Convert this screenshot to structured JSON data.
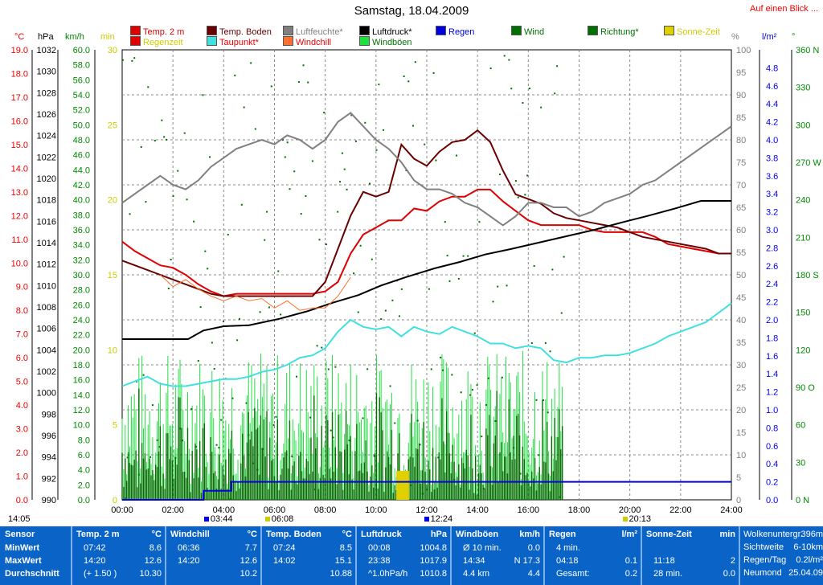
{
  "title": "Samstag, 18.04.2009",
  "overview_link": "Auf einen Blick ...",
  "legend": [
    {
      "label": "Temp. 2 m",
      "color": "#e00000"
    },
    {
      "label": "Temp. Boden",
      "color": "#6a0000"
    },
    {
      "label": "Luftfeuchte*",
      "color": "#808080"
    },
    {
      "label": "Luftdruck*",
      "color": "#000000"
    },
    {
      "label": "Regen",
      "color": "#0000e0"
    },
    {
      "label": "Wind",
      "color": "#007000"
    },
    {
      "label": "Richtung*",
      "color": "#007000"
    },
    {
      "label": "Sonne-Zeit",
      "color": "#e0d000"
    },
    {
      "label": "Regenzeit",
      "color": "#e00000"
    },
    {
      "label": "Taupunkt*",
      "color": "#40e0e0"
    },
    {
      "label": "Windchill",
      "color": "#ff7030"
    },
    {
      "label": "Windböen",
      "color": "#20e040"
    }
  ],
  "axis_units": {
    "temp": "°C",
    "pressure": "hPa",
    "wind": "km/h",
    "minutes": "min",
    "humidity": "%",
    "rain": "l/m²",
    "direction": "°"
  },
  "axes": {
    "temp_ticks": [
      "19.0",
      "18.0",
      "17.0",
      "16.0",
      "15.0",
      "14.0",
      "13.0",
      "12.0",
      "11.0",
      "10.0",
      "9.0",
      "8.0",
      "7.0",
      "6.0",
      "5.0",
      "4.0",
      "3.0",
      "2.0",
      "1.0",
      "0.0"
    ],
    "pressure_ticks": [
      "1032",
      "1030",
      "1028",
      "1026",
      "1024",
      "1022",
      "1020",
      "1018",
      "1016",
      "1014",
      "1012",
      "1010",
      "1008",
      "1006",
      "1004",
      "1002",
      "1000",
      "998",
      "996",
      "994",
      "992",
      "990"
    ],
    "wind_ticks": [
      "60.0",
      "58.0",
      "56.0",
      "54.0",
      "52.0",
      "50.0",
      "48.0",
      "46.0",
      "44.0",
      "42.0",
      "40.0",
      "38.0",
      "36.0",
      "34.0",
      "32.0",
      "30.0",
      "28.0",
      "26.0",
      "24.0",
      "22.0",
      "20.0",
      "18.0",
      "16.0",
      "14.0",
      "12.0",
      "10.0",
      "8.0",
      "6.0",
      "4.0",
      "2.0",
      "0.0"
    ],
    "minutes_ticks": [
      "30",
      "25",
      "20",
      "15",
      "10",
      "5",
      "0"
    ],
    "humidity_ticks": [
      "100",
      "95",
      "90",
      "85",
      "80",
      "75",
      "70",
      "65",
      "60",
      "55",
      "50",
      "45",
      "40",
      "35",
      "30",
      "25",
      "20",
      "15",
      "10",
      "5",
      "0"
    ],
    "rain_ticks": [
      "4.8",
      "4.6",
      "4.4",
      "4.2",
      "4.0",
      "3.8",
      "3.6",
      "3.4",
      "3.2",
      "3.0",
      "2.8",
      "2.6",
      "2.4",
      "2.2",
      "2.0",
      "1.8",
      "1.6",
      "1.4",
      "1.2",
      "1.0",
      "0.8",
      "0.6",
      "0.4",
      "0.2",
      "0.0"
    ],
    "direction_ticks": [
      "360 N",
      "330",
      "300",
      "270 W",
      "240",
      "210",
      "180 S",
      "150",
      "120",
      "90 O",
      "60",
      "30",
      "0 N"
    ],
    "time_ticks": [
      "00:00",
      "02:00",
      "04:00",
      "06:00",
      "08:00",
      "10:00",
      "12:00",
      "14:00",
      "16:00",
      "18:00",
      "20:00",
      "22:00",
      "24:00"
    ]
  },
  "sun_markers": {
    "sunrise": "06:08",
    "sunset": "20:13",
    "rain_start": "03:44",
    "noon": "12:24",
    "left_label": "14:05"
  },
  "stats": {
    "sensor": {
      "header": "Sensor",
      "rows": [
        "MinWert",
        "MaxWert",
        "Durchschnitt"
      ]
    },
    "columns": [
      {
        "header": "Temp. 2 m",
        "unit": "°C",
        "rows": [
          [
            "07:42",
            "8.6"
          ],
          [
            "14:20",
            "12.6"
          ],
          [
            "(+ 1.50 )",
            "10.30"
          ]
        ]
      },
      {
        "header": "Windchill",
        "unit": "°C",
        "rows": [
          [
            "06:36",
            "7.7"
          ],
          [
            "14:20",
            "12.6"
          ],
          [
            "",
            "10.2"
          ]
        ]
      },
      {
        "header": "Temp. Boden",
        "unit": "°C",
        "rows": [
          [
            "07:24",
            "8.5"
          ],
          [
            "14:02",
            "15.1"
          ],
          [
            "",
            "10.88"
          ]
        ]
      },
      {
        "header": "Luftdruck",
        "unit": "hPa",
        "rows": [
          [
            "00:08",
            "1004.8"
          ],
          [
            "23:38",
            "1017.9"
          ],
          [
            "^1.0hPa/h",
            "1010.8"
          ]
        ]
      },
      {
        "header": "Windböen",
        "unit": "km/h",
        "rows": [
          [
            "Ø 10 min.",
            "0.0"
          ],
          [
            "14:34",
            "N 17.3"
          ],
          [
            "4.4 km",
            "4.4"
          ]
        ]
      },
      {
        "header": "Regen",
        "unit": "l/m²",
        "rows": [
          [
            "4 min.",
            ""
          ],
          [
            "04:18",
            "0.1"
          ],
          [
            "Gesamt:",
            "0.2"
          ]
        ]
      },
      {
        "header": "Sonne-Zeit",
        "unit": "min",
        "rows": [
          [
            "",
            ""
          ],
          [
            "11:18",
            "2"
          ],
          [
            "28 min.",
            "0.0"
          ]
        ]
      }
    ],
    "extra": [
      [
        "Wolkenuntergr.",
        "396m"
      ],
      [
        "Sichtweite",
        "6-10km"
      ],
      [
        "Regen/Tag",
        "0.2l/m²"
      ],
      [
        "Neumond",
        "25.04.09"
      ]
    ]
  },
  "chart_data": {
    "type": "line",
    "x_unit": "hours",
    "xlim": [
      0,
      24
    ],
    "series": [
      {
        "name": "Temp. 2 m",
        "axis": "°C",
        "color": "#e00000",
        "x": [
          0,
          0.5,
          1,
          1.5,
          2,
          2.5,
          3,
          3.5,
          4,
          4.5,
          5,
          5.5,
          6,
          6.5,
          7,
          7.5,
          8,
          8.5,
          9,
          9.5,
          10,
          10.5,
          11,
          11.5,
          12,
          12.5,
          13,
          13.5,
          14,
          14.5,
          15,
          15.5,
          16,
          16.5,
          17,
          17.5,
          18,
          18.5,
          19,
          19.5,
          20,
          20.5,
          21,
          21.5,
          22,
          22.5,
          23,
          23.5,
          24
        ],
        "y": [
          10.9,
          10.5,
          10.2,
          9.9,
          9.8,
          9.5,
          9.1,
          8.8,
          8.6,
          8.7,
          8.7,
          8.7,
          8.7,
          8.7,
          8.7,
          8.7,
          8.8,
          9.2,
          10.4,
          11.2,
          11.5,
          11.8,
          11.8,
          12.3,
          12.2,
          12.6,
          12.8,
          12.8,
          13.1,
          13.1,
          12.6,
          12.2,
          11.8,
          11.6,
          11.6,
          11.6,
          11.6,
          11.4,
          11.3,
          11.3,
          11.3,
          11.3,
          11.1,
          10.8,
          10.7,
          10.6,
          10.5,
          10.4,
          10.4
        ]
      },
      {
        "name": "Temp. Boden",
        "axis": "°C",
        "color": "#6a0000",
        "x": [
          0,
          0.5,
          1,
          1.5,
          2,
          2.5,
          3,
          3.5,
          4,
          4.5,
          5,
          5.5,
          6,
          6.5,
          7,
          7.5,
          8,
          8.5,
          9,
          9.5,
          10,
          10.5,
          11,
          11.5,
          12,
          12.5,
          13,
          13.5,
          14,
          14.5,
          15,
          15.5,
          16,
          16.5,
          17,
          17.5,
          18,
          18.5,
          19,
          19.5,
          20,
          20.5,
          21,
          21.5,
          22,
          22.5,
          23,
          23.5,
          24
        ],
        "y": [
          10.1,
          9.9,
          9.7,
          9.5,
          9.3,
          9.1,
          8.9,
          8.7,
          8.6,
          8.6,
          8.6,
          8.6,
          8.6,
          8.6,
          8.6,
          8.6,
          9.2,
          10.6,
          12.0,
          13.0,
          12.8,
          13.0,
          15.0,
          14.4,
          14.1,
          14.7,
          15.1,
          15.2,
          15.6,
          15.1,
          13.9,
          12.9,
          12.7,
          12.5,
          12.1,
          11.9,
          11.8,
          11.7,
          11.6,
          11.5,
          11.3,
          11.1,
          11.0,
          10.9,
          10.8,
          10.7,
          10.6,
          10.4,
          10.4
        ]
      },
      {
        "name": "Luftfeuchte*",
        "axis": "%",
        "color": "#808080",
        "x": [
          0,
          0.5,
          1,
          1.5,
          2,
          2.5,
          3,
          3.5,
          4,
          4.5,
          5,
          5.5,
          6,
          6.5,
          7,
          7.5,
          8,
          8.5,
          9,
          9.5,
          10,
          10.5,
          11,
          11.5,
          12,
          12.5,
          13,
          13.5,
          14,
          14.5,
          15,
          15.5,
          16,
          16.5,
          17,
          17.5,
          18,
          18.5,
          19,
          19.5,
          20,
          20.5,
          21,
          21.5,
          22,
          22.5,
          23,
          23.5,
          24
        ],
        "y": [
          66,
          68,
          70,
          72,
          70,
          69,
          71,
          74,
          76,
          78,
          79,
          80,
          79,
          81,
          80,
          78,
          80,
          84,
          86,
          83,
          80,
          78,
          75,
          71,
          69,
          69,
          68,
          66,
          65,
          63,
          61,
          63,
          66,
          66,
          65,
          65,
          63,
          64,
          66,
          67,
          68,
          70,
          71,
          73,
          75,
          77,
          79,
          81,
          83
        ]
      },
      {
        "name": "Luftdruck*",
        "axis": "hPa",
        "color": "#000000",
        "x": [
          0,
          1.5,
          2.6,
          3.2,
          4,
          5,
          6.2,
          7.3,
          8.3,
          9.3,
          10.2,
          11.2,
          12.3,
          13.3,
          14.3,
          15.3,
          16.4,
          17.5,
          18.6,
          19.7,
          20.7,
          21.8,
          22.8,
          24
        ],
        "y": [
          1005.0,
          1005.0,
          1005.0,
          1005.8,
          1006.2,
          1006.3,
          1006.9,
          1007.6,
          1008.4,
          1009.1,
          1010.0,
          1010.8,
          1011.6,
          1012.2,
          1012.9,
          1013.4,
          1014.0,
          1014.6,
          1015.2,
          1015.9,
          1016.5,
          1017.2,
          1017.9,
          1017.9
        ]
      },
      {
        "name": "Taupunkt*",
        "axis": "°C",
        "color": "#40e0e0",
        "x": [
          0,
          0.5,
          1,
          1.5,
          2,
          2.5,
          3,
          3.5,
          4,
          4.5,
          5,
          5.5,
          6,
          6.5,
          7,
          7.5,
          8,
          8.5,
          9,
          9.5,
          10,
          10.5,
          11,
          11.5,
          12,
          12.5,
          13,
          13.5,
          14,
          14.5,
          15,
          15.5,
          16,
          16.5,
          17,
          17.5,
          18,
          18.5,
          19,
          19.5,
          20,
          20.5,
          21,
          21.5,
          22,
          22.5,
          23,
          23.5,
          24
        ],
        "y": [
          4.8,
          5.0,
          5.2,
          4.9,
          4.8,
          4.8,
          4.9,
          5.0,
          5.1,
          5.1,
          5.2,
          5.4,
          5.5,
          5.7,
          6.0,
          6.1,
          6.4,
          7.1,
          7.6,
          7.3,
          7.2,
          7.3,
          6.9,
          7.3,
          7.1,
          7.0,
          7.3,
          7.1,
          6.9,
          6.6,
          6.6,
          6.4,
          6.5,
          6.4,
          5.9,
          5.8,
          6.0,
          6.0,
          6.1,
          6.1,
          6.2,
          6.4,
          6.6,
          6.9,
          7.1,
          7.3,
          7.5,
          7.9,
          8.3
        ]
      },
      {
        "name": "Windchill",
        "axis": "°C",
        "color": "#ff7030",
        "x": [
          1.5,
          2,
          2.5,
          3,
          3.5,
          4,
          4.5,
          5,
          5.5,
          6,
          6.5,
          7,
          7.5,
          8,
          8.5,
          9
        ],
        "y": [
          9.5,
          9.0,
          9.3,
          8.9,
          8.6,
          8.4,
          8.6,
          8.4,
          8.5,
          8.1,
          8.4,
          8.0,
          8.1,
          8.1,
          8.6,
          9.4
        ]
      },
      {
        "name": "Regen",
        "axis": "l/m²",
        "color": "#0000e0",
        "x": [
          0,
          3.2,
          3.2,
          4.3,
          4.3,
          24
        ],
        "y": [
          0,
          0,
          0.1,
          0.1,
          0.2,
          0.2
        ]
      }
    ],
    "wind": {
      "name": "Wind",
      "color": "#007000",
      "gust_name": "Windböen",
      "gust_color": "#20e040",
      "until_hour": 17.4,
      "max_gust": 17.3
    },
    "sun_bar": {
      "name": "Sonne-Zeit",
      "color": "#e0d000",
      "start_hour": 10.8,
      "end_hour": 11.3,
      "minutes": 2
    }
  }
}
